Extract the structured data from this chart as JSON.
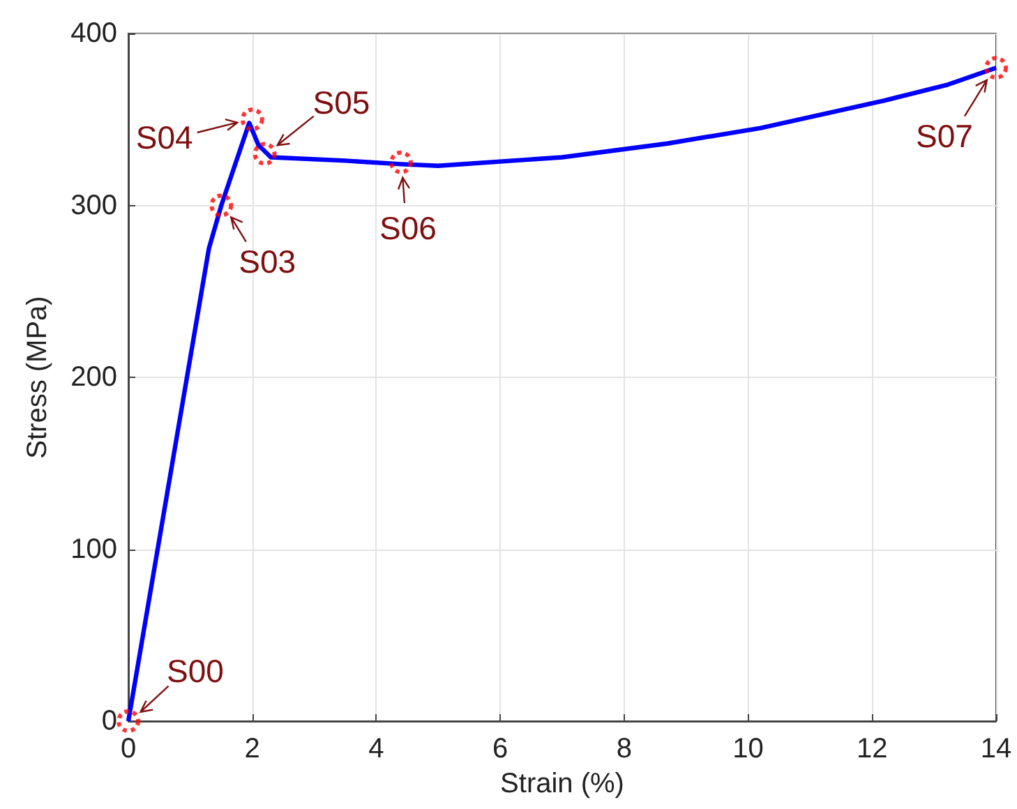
{
  "chart_data": {
    "type": "line",
    "xlabel": "Strain (%)",
    "ylabel": "Stress (MPa)",
    "xlim": [
      0,
      14
    ],
    "xticks": [
      0,
      2,
      4,
      6,
      8,
      10,
      12,
      14
    ],
    "ylim": [
      0,
      400
    ],
    "yticks": [
      0,
      100,
      200,
      300,
      400
    ],
    "grid": true,
    "series": [
      {
        "color": "#0000ff",
        "marker": "none",
        "x": [
          0,
          1.3,
          1.5,
          1.95,
          2.1,
          2.3,
          3.5,
          4.4,
          5,
          7,
          8.7,
          10.2,
          12.2,
          13.2,
          14
        ],
        "values": [
          0,
          275,
          300,
          348,
          335,
          328,
          326,
          324,
          323,
          328,
          336,
          345,
          361,
          370,
          380
        ]
      },
      {
        "type": "scatter",
        "color": "#ff0000",
        "marker": "circle",
        "x": [
          0,
          1.5,
          2,
          2.2,
          4.4,
          14
        ],
        "values": [
          0,
          300,
          350,
          330,
          325,
          380
        ]
      }
    ],
    "annotations": [
      {
        "text": "S00",
        "x": 0,
        "y": 0
      },
      {
        "text": "S03",
        "x": 1.5,
        "y": 300
      },
      {
        "text": "S04",
        "x": 2,
        "y": 350
      },
      {
        "text": "S05",
        "x": 2.2,
        "y": 330
      },
      {
        "text": "S06",
        "x": 4.4,
        "y": 325
      },
      {
        "text": "S07",
        "x": 14,
        "y": 380
      }
    ]
  }
}
